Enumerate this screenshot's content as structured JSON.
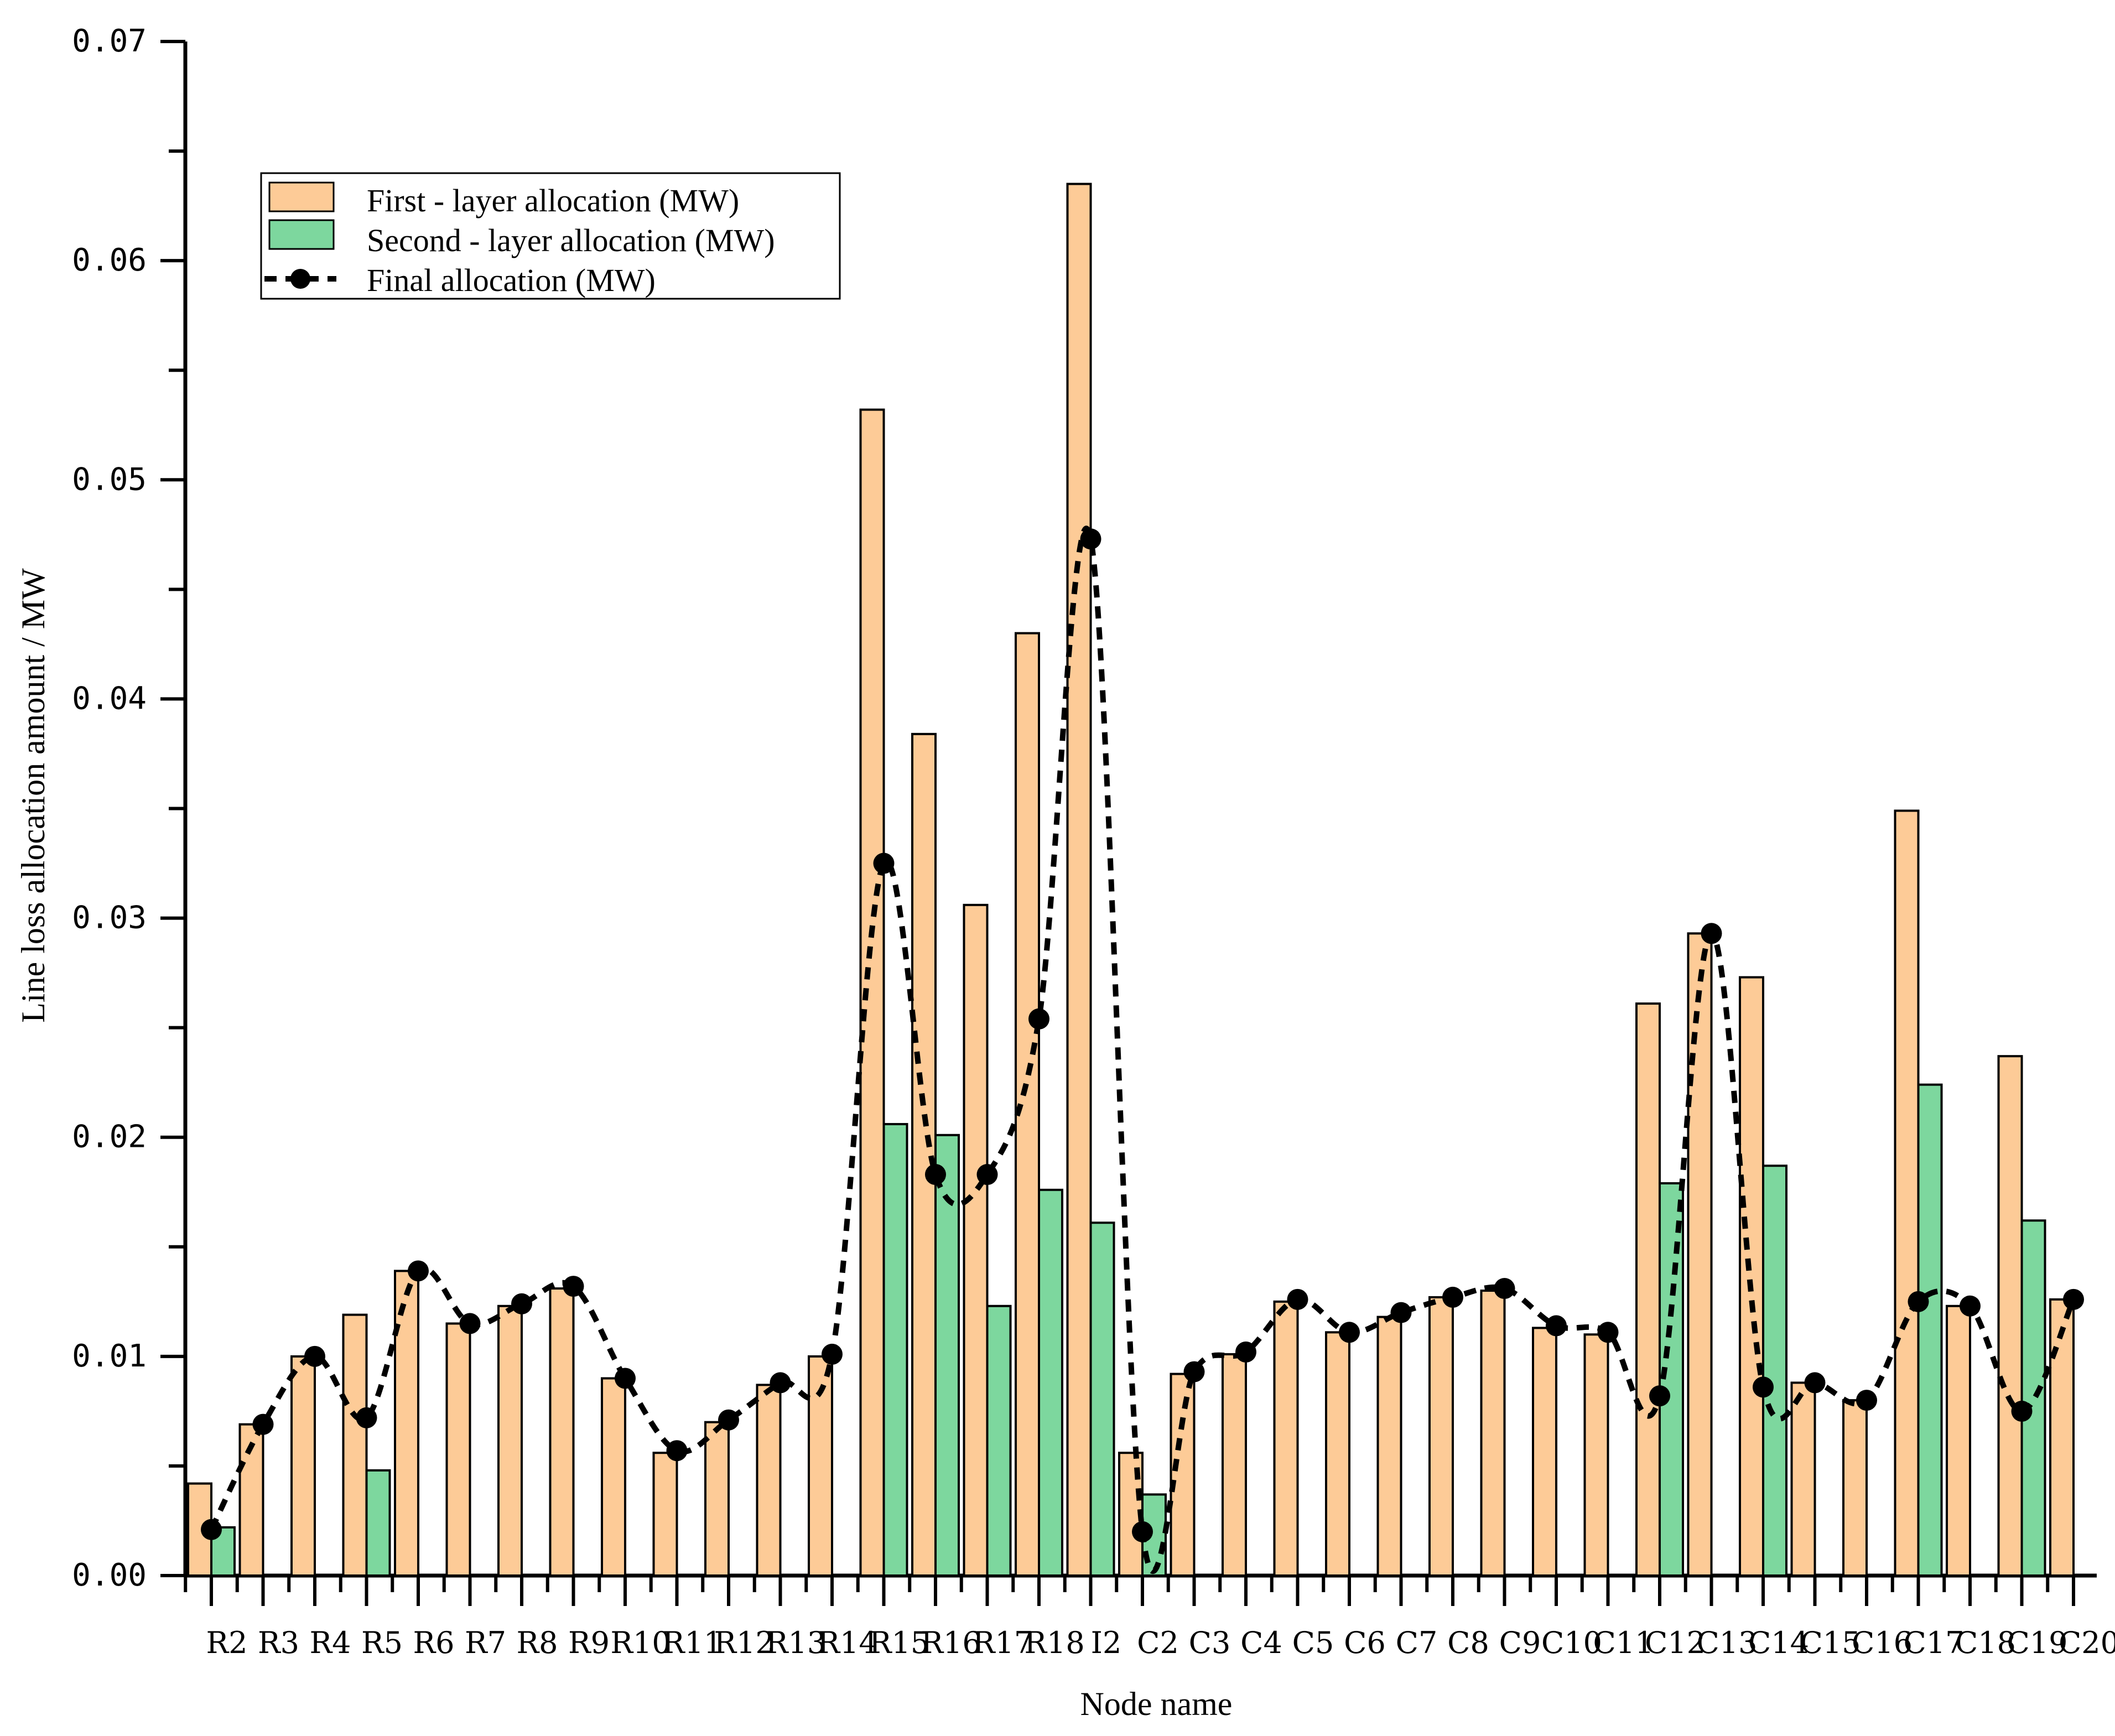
{
  "chart_data": {
    "type": "bar",
    "title": "",
    "xlabel": "Node name",
    "ylabel": "Line loss allocation amount / MW",
    "ylim": [
      0,
      0.07
    ],
    "ytick_values": [
      0,
      0.01,
      0.02,
      0.03,
      0.04,
      0.05,
      0.06,
      0.07
    ],
    "ytick_labels": [
      "0.00",
      "0.01",
      "0.02",
      "0.03",
      "0.04",
      "0.05",
      "0.06",
      "0.07"
    ],
    "legend_position": "top-left",
    "categories": [
      "R2",
      "R3",
      "R4",
      "R5",
      "R6",
      "R7",
      "R8",
      "R9",
      "R10",
      "R11",
      "R12",
      "R13",
      "R14",
      "R15",
      "R16",
      "R17",
      "R18",
      "I2",
      "C2",
      "C3",
      "C4",
      "C5",
      "C6",
      "C7",
      "C8",
      "C9",
      "C10",
      "C11",
      "C12",
      "C13",
      "C14",
      "C15",
      "C16",
      "C17",
      "C18",
      "C19",
      "C20"
    ],
    "series": [
      {
        "name": "First - layer allocation (MW)",
        "kind": "bar",
        "color": "#FDCB97",
        "values": [
          0.0042,
          0.0069,
          0.01,
          0.0119,
          0.0139,
          0.0115,
          0.0123,
          0.0131,
          0.009,
          0.0056,
          0.007,
          0.0087,
          0.01,
          0.0532,
          0.0384,
          0.0306,
          0.043,
          0.0635,
          0.0056,
          0.0092,
          0.0101,
          0.0125,
          0.0111,
          0.0118,
          0.0127,
          0.013,
          0.0113,
          0.011,
          0.0261,
          0.0293,
          0.0273,
          0.0088,
          0.008,
          0.0349,
          0.0123,
          0.0237,
          0.0126
        ]
      },
      {
        "name": "Second - layer allocation (MW)",
        "kind": "bar",
        "color": "#7DD79E",
        "values": [
          0.0022,
          0,
          0,
          0.0048,
          0,
          0,
          0,
          0,
          0,
          0,
          0,
          0,
          0,
          0.0206,
          0.0201,
          0.0123,
          0.0176,
          0.0161,
          0.0037,
          0,
          0,
          0,
          0,
          0,
          0,
          0,
          0,
          0,
          0.0179,
          0,
          0.0187,
          0,
          0,
          0.0224,
          0,
          0.0162,
          0
        ]
      },
      {
        "name": "Final allocation (MW)",
        "kind": "line",
        "color": "#000000",
        "values": [
          0.0021,
          0.0069,
          0.01,
          0.0072,
          0.0139,
          0.0115,
          0.0124,
          0.0132,
          0.009,
          0.0057,
          0.0071,
          0.0088,
          0.0101,
          0.0325,
          0.0183,
          0.0183,
          0.0254,
          0.0473,
          0.002,
          0.0093,
          0.0102,
          0.0126,
          0.0111,
          0.012,
          0.0127,
          0.0131,
          0.0114,
          0.0111,
          0.0082,
          0.0293,
          0.0086,
          0.0088,
          0.008,
          0.0125,
          0.0123,
          0.0075,
          0.0126
        ]
      }
    ]
  }
}
